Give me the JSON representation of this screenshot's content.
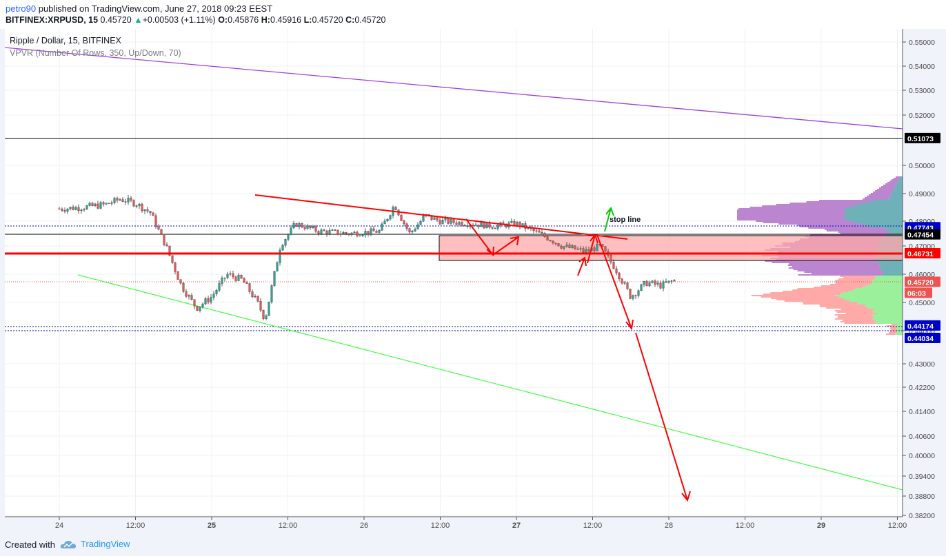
{
  "header": {
    "user": "petro90",
    "published": "published on TradingView.com, June 27, 2018 09:23 EEST",
    "symbol": "BITFINEX:XRPUSD, 15",
    "price": "0.45720",
    "change": "+0.00503 (+1.11%)",
    "o_label": "O:",
    "o_value": "0.45876",
    "h_label": "H:",
    "h_value": "0.45916",
    "l_label": "L:",
    "l_value": "0.45720",
    "c_label": "C:",
    "c_value": "0.45720"
  },
  "legend": {
    "title": "Ripple / Dollar, 15, BITFINEX",
    "indicator": "VPVR (Number Of Rows, 350, Up/Down, 70)"
  },
  "footer": {
    "created_with": "Created with",
    "brand": "TradingView"
  },
  "colors": {
    "up": "#26a69a",
    "down": "#ef5350",
    "drawing_red": "#ff0000",
    "trend_purple": "#a040e0",
    "support_green": "#40ff40",
    "blue_dotted": "#0000cc",
    "zone_fill": "#ffaaaa"
  },
  "chart_data": {
    "type": "candlestick",
    "instrument": "Ripple / Dollar, 15, BITFINEX",
    "y_axis": {
      "ticks": [
        "0.55000",
        "0.54000",
        "0.53000",
        "0.52000",
        "0.50000",
        "0.49000",
        "0.48000",
        "0.47000",
        "0.46000",
        "0.45000",
        "0.44000",
        "0.43000",
        "0.42200",
        "0.41400",
        "0.40600",
        "0.40000",
        "0.39400",
        "0.38800",
        "0.38200"
      ],
      "range": [
        0.381,
        0.556
      ]
    },
    "x_axis": {
      "ticks": [
        "24",
        "12:00",
        "25",
        "12:00",
        "26",
        "12:00",
        "27",
        "12:00",
        "28",
        "12:00",
        "29",
        "12:00"
      ]
    },
    "price_labels": [
      {
        "value": "0.51073",
        "style": "black"
      },
      {
        "value": "0.47743",
        "style": "blue"
      },
      {
        "value": "0.47454",
        "style": "black"
      },
      {
        "value": "0.46731",
        "style": "red"
      },
      {
        "value": "0.45720",
        "style": "last"
      },
      {
        "value": "06:03",
        "style": "timer"
      },
      {
        "value": "0.44174",
        "style": "blue"
      },
      {
        "value": "0.44034",
        "style": "blue"
      }
    ],
    "price_path": [
      [
        24.0,
        0.4845
      ],
      [
        24.15,
        0.485
      ],
      [
        24.3,
        0.486
      ],
      [
        24.4,
        0.488
      ],
      [
        24.5,
        0.4865
      ],
      [
        24.6,
        0.483
      ],
      [
        24.7,
        0.47
      ],
      [
        24.8,
        0.456
      ],
      [
        24.9,
        0.448
      ],
      [
        25.0,
        0.452
      ],
      [
        25.1,
        0.46
      ],
      [
        25.2,
        0.458
      ],
      [
        25.3,
        0.45
      ],
      [
        25.35,
        0.444
      ],
      [
        25.45,
        0.47
      ],
      [
        25.55,
        0.479
      ],
      [
        25.7,
        0.476
      ],
      [
        25.9,
        0.475
      ],
      [
        26.1,
        0.476
      ],
      [
        26.2,
        0.486
      ],
      [
        26.3,
        0.475
      ],
      [
        26.4,
        0.482
      ],
      [
        26.5,
        0.48
      ],
      [
        26.7,
        0.479
      ],
      [
        26.85,
        0.478
      ],
      [
        27.0,
        0.479
      ],
      [
        27.15,
        0.475
      ],
      [
        27.3,
        0.47
      ],
      [
        27.45,
        0.468
      ],
      [
        27.55,
        0.47
      ],
      [
        27.65,
        0.462
      ],
      [
        27.75,
        0.452
      ],
      [
        27.85,
        0.457
      ],
      [
        27.95,
        0.456
      ],
      [
        28.05,
        0.458
      ]
    ],
    "annotations": {
      "text": "stop line",
      "resistance_zone": [
        0.4654,
        0.4745
      ],
      "horizontal_lines": [
        0.51073,
        0.47743,
        0.47454,
        0.46731,
        0.44174,
        0.44034
      ]
    }
  }
}
